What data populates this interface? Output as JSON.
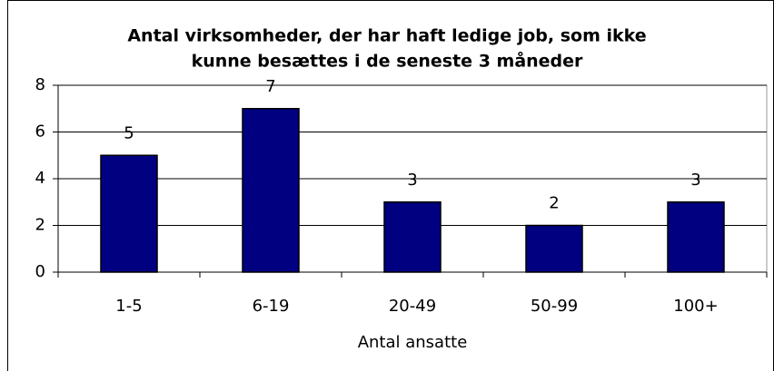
{
  "chart_data": {
    "type": "bar",
    "title": [
      "Antal virksomheder, der har haft ledige job, som ikke",
      "kunne besættes i de seneste 3 måneder"
    ],
    "xlabel": "Antal ansatte",
    "categories": [
      "1-5",
      "6-19",
      "20-49",
      "50-99",
      "100+"
    ],
    "values": [
      5,
      7,
      3,
      2,
      3
    ],
    "color": "#000080",
    "ylim": [
      0,
      8
    ],
    "yticks": [
      0,
      2,
      4,
      6,
      8
    ],
    "grid": true
  }
}
